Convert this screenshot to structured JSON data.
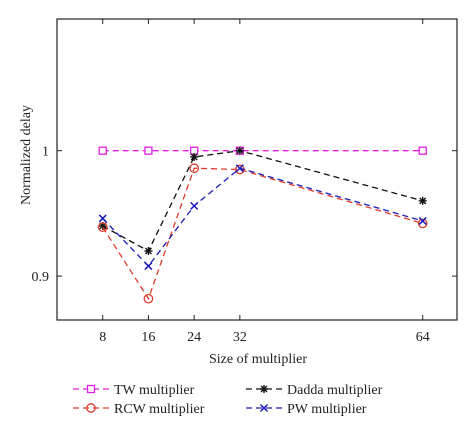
{
  "chart_data": {
    "type": "line",
    "title": "",
    "xlabel": "Size of multiplier",
    "ylabel": "Normalized delay",
    "x": [
      8,
      16,
      24,
      32,
      64
    ],
    "x_ticks": [
      "8",
      "16",
      "24",
      "32",
      "64"
    ],
    "xlim": [
      0,
      70
    ],
    "ylim": [
      0.865,
      1.105
    ],
    "y_ticks": [
      0.9,
      1.0
    ],
    "y_tick_labels": [
      "0.9",
      "1"
    ],
    "grid": false,
    "legend_position": "below plot",
    "series": [
      {
        "name": "TW multiplier",
        "color": "#e020e0",
        "marker": "square",
        "values": [
          1.0,
          1.0,
          1.0,
          1.0,
          1.0
        ]
      },
      {
        "name": "Dadda multiplier",
        "color": "#111111",
        "marker": "star",
        "values": [
          0.94,
          0.92,
          0.995,
          1.0,
          0.96
        ]
      },
      {
        "name": "RCW multiplier",
        "color": "#e03a2a",
        "marker": "circle",
        "values": [
          0.939,
          0.882,
          0.986,
          0.985,
          0.942
        ]
      },
      {
        "name": "PW multiplier",
        "color": "#1a1ab8",
        "marker": "x",
        "values": [
          0.946,
          0.908,
          0.956,
          0.986,
          0.944
        ]
      }
    ]
  }
}
